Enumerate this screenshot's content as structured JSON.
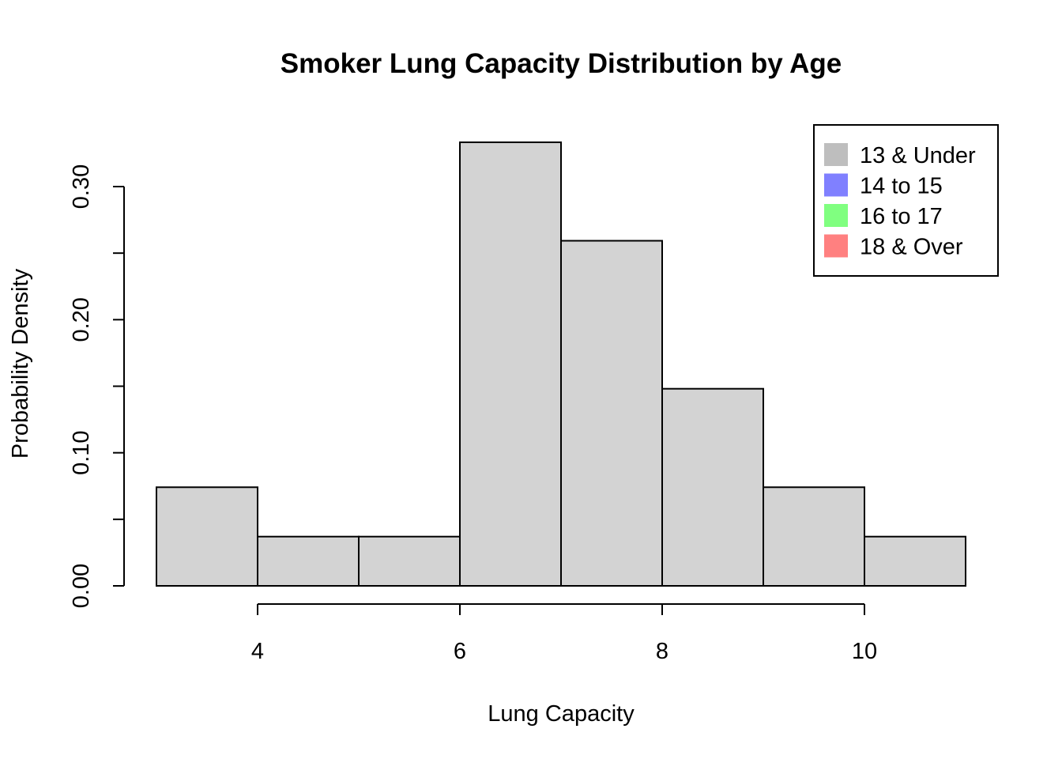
{
  "chart_data": {
    "type": "bar",
    "subtype": "histogram",
    "title": "Smoker Lung Capacity Distribution by Age",
    "xlabel": "Lung Capacity",
    "ylabel": "Probability Density",
    "x_ticks": [
      4,
      6,
      8,
      10
    ],
    "y_ticks": [
      "0.00",
      "0.10",
      "0.20",
      "0.30"
    ],
    "y_tick_values": [
      0.0,
      0.1,
      0.2,
      0.3
    ],
    "y_minor_ticks": [
      0.05,
      0.15,
      0.25
    ],
    "xlim": [
      3,
      11
    ],
    "ylim": [
      0,
      0.335
    ],
    "bins": [
      {
        "x_start": 3,
        "x_end": 4,
        "density": 0.0741
      },
      {
        "x_start": 4,
        "x_end": 5,
        "density": 0.037
      },
      {
        "x_start": 5,
        "x_end": 6,
        "density": 0.037
      },
      {
        "x_start": 6,
        "x_end": 7,
        "density": 0.3333
      },
      {
        "x_start": 7,
        "x_end": 8,
        "density": 0.2593
      },
      {
        "x_start": 8,
        "x_end": 9,
        "density": 0.1481
      },
      {
        "x_start": 9,
        "x_end": 10,
        "density": 0.0741
      },
      {
        "x_start": 10,
        "x_end": 11,
        "density": 0.037
      }
    ],
    "bar_color": "#d3d3d3",
    "legend": {
      "position": "top-right",
      "entries": [
        {
          "label": "13 & Under",
          "color": "#bebebe"
        },
        {
          "label": "14 to 15",
          "color": "#8080ff"
        },
        {
          "label": "16 to 17",
          "color": "#80ff80"
        },
        {
          "label": "18 & Over",
          "color": "#ff8080"
        }
      ]
    }
  }
}
